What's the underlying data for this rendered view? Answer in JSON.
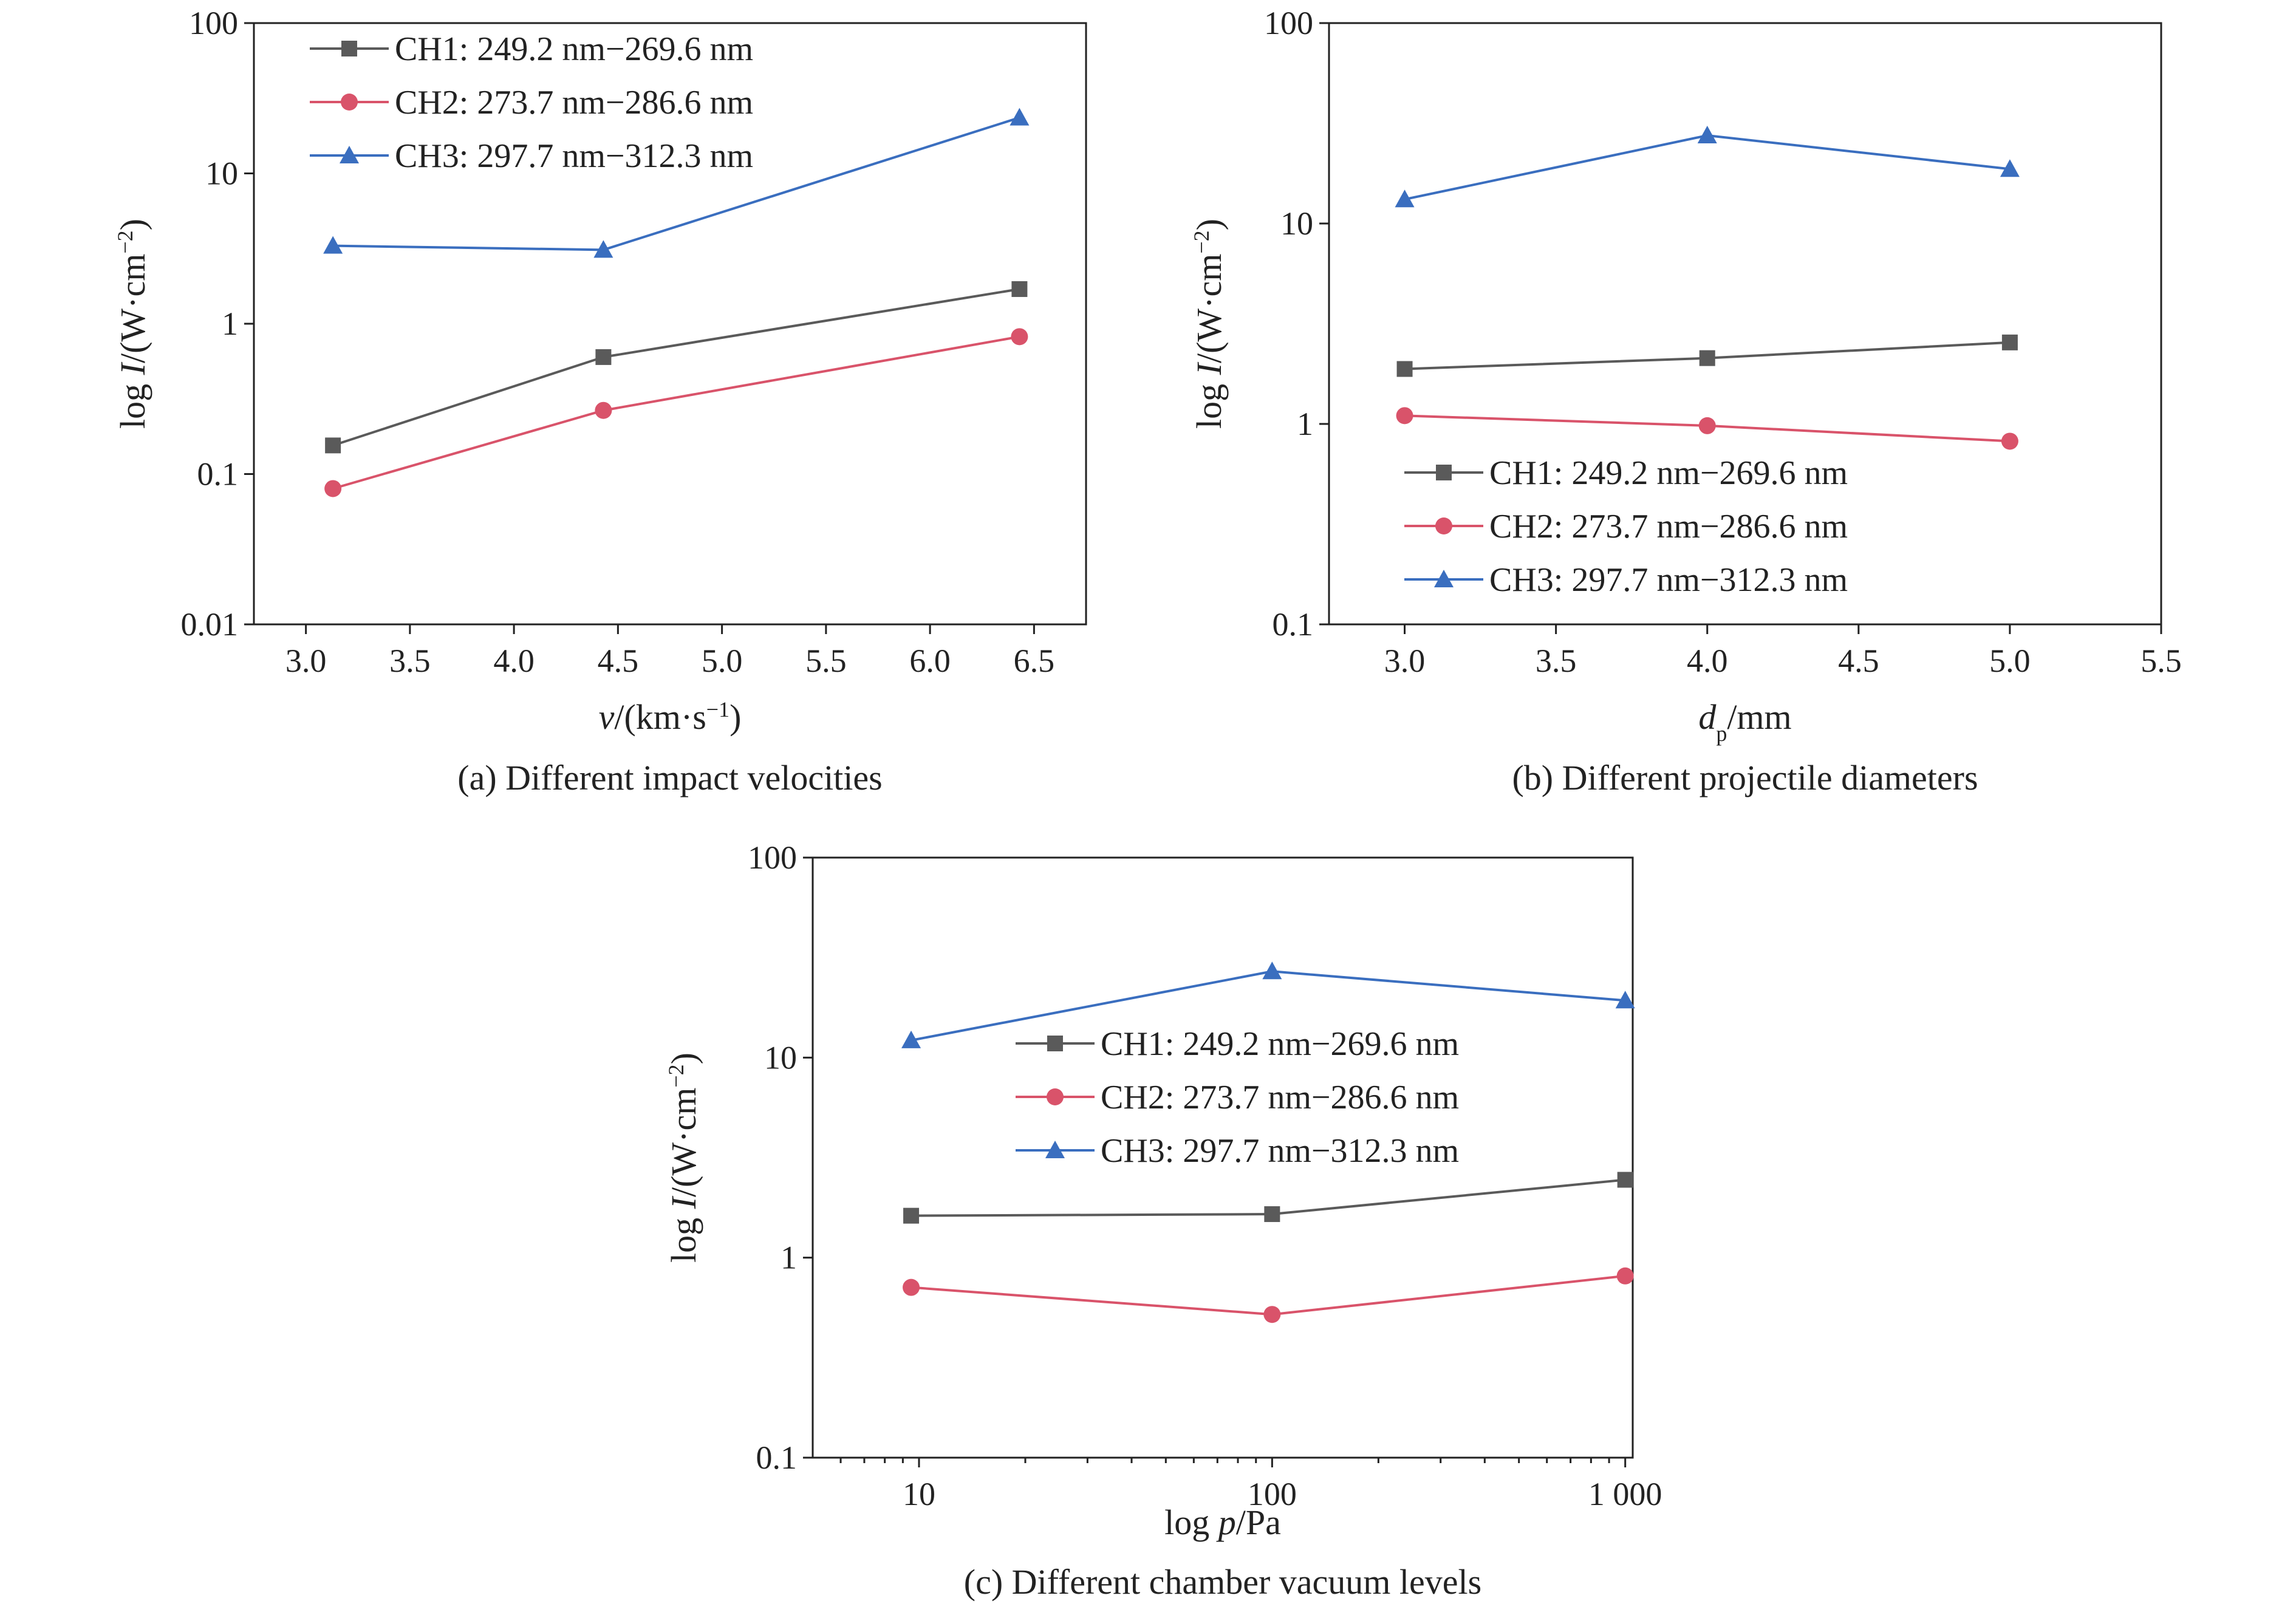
{
  "chart_data": [
    {
      "panel": "a",
      "type": "line",
      "caption": "(a) Different impact velocities",
      "xlabel_parts": [
        {
          "t": "v",
          "i": true
        },
        {
          "t": "/(km·s"
        },
        {
          "t": "−1",
          "sup": true
        },
        {
          "t": ")"
        }
      ],
      "ylabel_parts": [
        {
          "t": "log "
        },
        {
          "t": "I",
          "i": true
        },
        {
          "t": "/(W·cm"
        },
        {
          "t": "−2",
          "sup": true
        },
        {
          "t": ")"
        }
      ],
      "x_scale": "linear",
      "y_scale": "log",
      "xlim": [
        2.75,
        6.75
      ],
      "ylim": [
        0.01,
        100
      ],
      "xticks": [
        3.0,
        3.5,
        4.0,
        4.5,
        5.0,
        5.5,
        6.0,
        6.5
      ],
      "xtick_labels": [
        "3.0",
        "3.5",
        "4.0",
        "4.5",
        "5.0",
        "5.5",
        "6.0",
        "6.5"
      ],
      "yticks": [
        0.01,
        0.1,
        1,
        10,
        100
      ],
      "ytick_labels": [
        "0.01",
        "0.1",
        "1",
        "10",
        "100"
      ],
      "legend_position": "top-left",
      "series": [
        {
          "name": "CH1: 249.2 nm−269.6 nm",
          "color": "#5a5a5a",
          "marker": "square",
          "x": [
            3.13,
            4.43,
            6.43
          ],
          "y": [
            0.155,
            0.6,
            1.7
          ]
        },
        {
          "name": "CH2: 273.7 nm−286.6 nm",
          "color": "#d9536a",
          "marker": "circle",
          "x": [
            3.13,
            4.43,
            6.43
          ],
          "y": [
            0.08,
            0.265,
            0.82
          ]
        },
        {
          "name": "CH3: 297.7 nm−312.3 nm",
          "color": "#3a6ebf",
          "marker": "triangle",
          "x": [
            3.13,
            4.43,
            6.43
          ],
          "y": [
            3.3,
            3.1,
            23.5
          ]
        }
      ]
    },
    {
      "panel": "b",
      "type": "line",
      "caption": "(b) Different projectile diameters",
      "xlabel_parts": [
        {
          "t": "d",
          "i": true
        },
        {
          "t": "p",
          "sub": true
        },
        {
          "t": "/mm"
        }
      ],
      "ylabel_parts": [
        {
          "t": "log "
        },
        {
          "t": "I",
          "i": true
        },
        {
          "t": "/(W·cm"
        },
        {
          "t": "−2",
          "sup": true
        },
        {
          "t": ")"
        }
      ],
      "x_scale": "linear",
      "y_scale": "log",
      "xlim": [
        2.75,
        5.5
      ],
      "ylim": [
        0.1,
        100
      ],
      "xticks": [
        3.0,
        3.5,
        4.0,
        4.5,
        5.0,
        5.5
      ],
      "xtick_labels": [
        "3.0",
        "3.5",
        "4.0",
        "4.5",
        "5.0",
        "5.5"
      ],
      "yticks": [
        0.1,
        1,
        10,
        100
      ],
      "ytick_labels": [
        "0.1",
        "1",
        "10",
        "100"
      ],
      "legend_position": "bottom-left",
      "series": [
        {
          "name": "CH1: 249.2 nm−269.6 nm",
          "color": "#5a5a5a",
          "marker": "square",
          "x": [
            3.0,
            4.0,
            5.0
          ],
          "y": [
            1.88,
            2.13,
            2.55
          ]
        },
        {
          "name": "CH2: 273.7 nm−286.6 nm",
          "color": "#d9536a",
          "marker": "circle",
          "x": [
            3.0,
            4.0,
            5.0
          ],
          "y": [
            1.1,
            0.98,
            0.82
          ]
        },
        {
          "name": "CH3: 297.7 nm−312.3 nm",
          "color": "#3a6ebf",
          "marker": "triangle",
          "x": [
            3.0,
            4.0,
            5.0
          ],
          "y": [
            13.2,
            27.5,
            18.7
          ]
        }
      ]
    },
    {
      "panel": "c",
      "type": "line",
      "caption": "(c) Different chamber vacuum levels",
      "xlabel_parts": [
        {
          "t": "log "
        },
        {
          "t": "p",
          "i": true
        },
        {
          "t": "/Pa"
        }
      ],
      "ylabel_parts": [
        {
          "t": "log "
        },
        {
          "t": "I",
          "i": true
        },
        {
          "t": "/(W·cm"
        },
        {
          "t": "−2",
          "sup": true
        },
        {
          "t": ")"
        }
      ],
      "x_scale": "log",
      "y_scale": "log",
      "xlim": [
        5,
        1050
      ],
      "ylim": [
        0.1,
        100
      ],
      "xticks": [
        10,
        100,
        1000
      ],
      "xtick_labels": [
        "10",
        "100",
        "1 000"
      ],
      "yticks": [
        0.1,
        1,
        10,
        100
      ],
      "ytick_labels": [
        "0.1",
        "1",
        "10",
        "100"
      ],
      "legend_position": "center",
      "series": [
        {
          "name": "CH1: 249.2 nm−269.6 nm",
          "color": "#5a5a5a",
          "marker": "square",
          "x": [
            9.5,
            100,
            1000
          ],
          "y": [
            1.62,
            1.65,
            2.45
          ]
        },
        {
          "name": "CH2: 273.7 nm−286.6 nm",
          "color": "#d9536a",
          "marker": "circle",
          "x": [
            9.5,
            100,
            1000
          ],
          "y": [
            0.71,
            0.52,
            0.81
          ]
        },
        {
          "name": "CH3: 297.7 nm−312.3 nm",
          "color": "#3a6ebf",
          "marker": "triangle",
          "x": [
            9.5,
            100,
            1000
          ],
          "y": [
            12.2,
            27.0,
            19.3
          ]
        }
      ]
    }
  ]
}
